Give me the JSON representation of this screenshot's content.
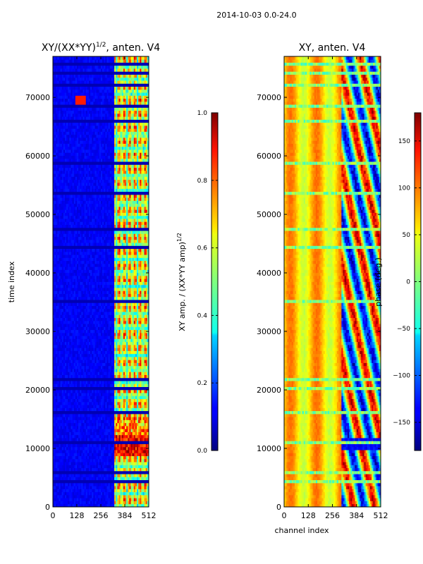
{
  "suptitle": "2014-10-03 0.0-24.0",
  "chart_data": [
    {
      "type": "heatmap",
      "title": "XY/(XX*YY)$^{1/2}$, anten. V4",
      "title_main": "XY/(XX*YY)",
      "title_sup": "1/2",
      "title_suffix": ", anten. V4",
      "xlabel": "",
      "ylabel": "time index",
      "xlim": [
        0,
        512
      ],
      "ylim": [
        0,
        77000
      ],
      "xticks": [
        0,
        128,
        256,
        384,
        512
      ],
      "yticks": [
        0,
        10000,
        20000,
        30000,
        40000,
        50000,
        60000,
        70000
      ],
      "colormap": "jet",
      "colorbar": {
        "label_main": "XY amp. / (XX*YY amp)",
        "label_sup": "1/2",
        "range": [
          0.0,
          1.0
        ],
        "ticks": [
          0.0,
          0.2,
          0.4,
          0.6,
          0.8,
          1.0
        ],
        "tick_labels": [
          "0.0",
          "0.2",
          "0.4",
          "0.6",
          "0.8",
          "1.0"
        ]
      },
      "description": "mostly low amplitude (~0.1); strong structured amplitude in channels ~330-512; saturation near 0.9-1.0 at time ~9000-12000; bright spot near channel 150, time ~69500"
    },
    {
      "type": "heatmap",
      "title": "XY, anten. V4",
      "xlabel": "channel index",
      "ylabel": "",
      "xlim": [
        0,
        512
      ],
      "ylim": [
        0,
        77000
      ],
      "xticks": [
        0,
        128,
        256,
        384,
        512
      ],
      "yticks": [
        0,
        10000,
        20000,
        30000,
        40000,
        50000,
        60000,
        70000
      ],
      "colormap": "jet",
      "colorbar": {
        "label": "phase (deg.)",
        "range": [
          -180,
          180
        ],
        "ticks": [
          -150,
          -100,
          -50,
          0,
          50,
          100,
          150
        ],
        "tick_labels": [
          "−150",
          "−100",
          "−50",
          "0",
          "50",
          "100",
          "150"
        ]
      },
      "description": "phase mostly ~+40 to +90 deg (yellow/orange vertical stripes) in channels 0-300; mixed phases (blue/red) in channels ~300-512; horizontal flagged bands"
    }
  ]
}
